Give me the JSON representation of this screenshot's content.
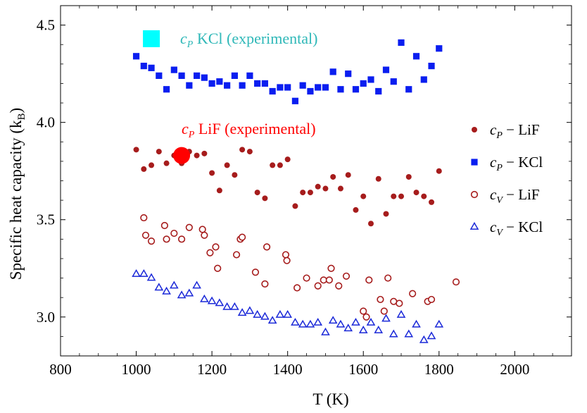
{
  "chart_data": {
    "type": "scatter",
    "xlabel": "T (K)",
    "ylabel_main": "Specific heat capacity (k",
    "ylabel_sub": "B",
    "ylabel_close": ")",
    "xlim": [
      800,
      2150
    ],
    "ylim": [
      2.8,
      4.6
    ],
    "xticks": [
      800,
      1000,
      1200,
      1400,
      1600,
      1800,
      2000
    ],
    "xtick_labels": [
      "800",
      "1000",
      "1200",
      "1400",
      "1600",
      "1800",
      "2000"
    ],
    "yticks": [
      3.0,
      3.5,
      4.0,
      4.5
    ],
    "ytick_labels": [
      "3.0",
      "3.5",
      "4.0",
      "4.5"
    ],
    "grid": false,
    "legend_position": "right",
    "colors": {
      "lif_dark": "#a61c1c",
      "kcl_blue": "#0a1ef0",
      "tri_blue": "#1a28d8",
      "exp_kcl": "#2fb8b8",
      "exp_kcl_marker": "#00ffff",
      "exp_lif": "#ff0000"
    },
    "series": [
      {
        "name": "cP − LiF",
        "marker": "filled-circle",
        "color": "#a61c1c",
        "x": [
          1000,
          1020,
          1040,
          1060,
          1080,
          1100,
          1120,
          1140,
          1160,
          1180,
          1200,
          1220,
          1240,
          1260,
          1280,
          1300,
          1320,
          1340,
          1360,
          1380,
          1400,
          1420,
          1440,
          1460,
          1480,
          1500,
          1520,
          1540,
          1560,
          1580,
          1600,
          1620,
          1640,
          1660,
          1680,
          1700,
          1720,
          1740,
          1760,
          1780,
          1800
        ],
        "y": [
          3.86,
          3.76,
          3.78,
          3.85,
          3.79,
          3.83,
          3.79,
          3.85,
          3.83,
          3.84,
          3.74,
          3.65,
          3.78,
          3.73,
          3.86,
          3.85,
          3.64,
          3.61,
          3.78,
          3.78,
          3.81,
          3.57,
          3.64,
          3.64,
          3.67,
          3.66,
          3.72,
          3.66,
          3.73,
          3.55,
          3.62,
          3.48,
          3.71,
          3.53,
          3.62,
          3.62,
          3.72,
          3.64,
          3.62,
          3.59,
          3.75
        ]
      },
      {
        "name": "cP − KCl",
        "marker": "filled-square",
        "color": "#0a1ef0",
        "x": [
          1000,
          1020,
          1040,
          1060,
          1080,
          1100,
          1120,
          1140,
          1160,
          1180,
          1200,
          1220,
          1240,
          1260,
          1280,
          1300,
          1320,
          1340,
          1360,
          1380,
          1400,
          1420,
          1440,
          1460,
          1480,
          1500,
          1520,
          1540,
          1560,
          1580,
          1600,
          1620,
          1640,
          1660,
          1680,
          1700,
          1720,
          1740,
          1760,
          1780,
          1800
        ],
        "y": [
          4.34,
          4.29,
          4.28,
          4.24,
          4.17,
          4.27,
          4.24,
          4.19,
          4.24,
          4.23,
          4.2,
          4.21,
          4.19,
          4.24,
          4.19,
          4.24,
          4.2,
          4.2,
          4.16,
          4.18,
          4.18,
          4.11,
          4.19,
          4.16,
          4.18,
          4.18,
          4.26,
          4.17,
          4.25,
          4.17,
          4.2,
          4.22,
          4.16,
          4.27,
          4.21,
          4.41,
          4.17,
          4.34,
          4.22,
          4.29,
          4.38
        ]
      },
      {
        "name": "cV − LiF",
        "marker": "open-circle",
        "color": "#a61c1c",
        "x": [
          1020,
          1025,
          1040,
          1075,
          1080,
          1100,
          1120,
          1140,
          1175,
          1180,
          1195,
          1210,
          1215,
          1265,
          1275,
          1280,
          1315,
          1340,
          1345,
          1395,
          1398,
          1425,
          1450,
          1480,
          1495,
          1510,
          1515,
          1535,
          1555,
          1600,
          1608,
          1615,
          1645,
          1655,
          1665,
          1680,
          1695,
          1730,
          1770,
          1780,
          1845
        ],
        "y": [
          3.51,
          3.42,
          3.39,
          3.47,
          3.4,
          3.43,
          3.4,
          3.46,
          3.45,
          3.42,
          3.33,
          3.36,
          3.25,
          3.32,
          3.4,
          3.41,
          3.23,
          3.17,
          3.36,
          3.32,
          3.29,
          3.15,
          3.2,
          3.16,
          3.19,
          3.19,
          3.25,
          3.16,
          3.21,
          3.03,
          3.0,
          3.19,
          3.09,
          3.03,
          3.2,
          3.08,
          3.07,
          3.12,
          3.08,
          3.09,
          3.18
        ]
      },
      {
        "name": "cV − KCl",
        "marker": "open-triangle",
        "color": "#1a28d8",
        "x": [
          1000,
          1020,
          1040,
          1060,
          1080,
          1100,
          1120,
          1140,
          1160,
          1180,
          1200,
          1220,
          1240,
          1260,
          1280,
          1300,
          1320,
          1340,
          1360,
          1380,
          1400,
          1420,
          1440,
          1460,
          1480,
          1500,
          1520,
          1540,
          1560,
          1580,
          1600,
          1620,
          1640,
          1660,
          1680,
          1700,
          1720,
          1740,
          1760,
          1780,
          1800
        ],
        "y": [
          3.22,
          3.22,
          3.2,
          3.15,
          3.13,
          3.16,
          3.11,
          3.12,
          3.16,
          3.09,
          3.08,
          3.07,
          3.05,
          3.05,
          3.02,
          3.03,
          3.01,
          3.0,
          2.98,
          3.01,
          3.01,
          2.97,
          2.96,
          2.96,
          2.97,
          2.92,
          2.98,
          2.96,
          2.94,
          2.97,
          2.93,
          2.97,
          2.93,
          2.99,
          2.91,
          3.01,
          2.91,
          2.96,
          2.88,
          2.9,
          2.96
        ]
      }
    ],
    "experimental": [
      {
        "id": "kcl",
        "x": 1040,
        "y": 4.43,
        "marker": "cyan-square",
        "label_symbol": "c",
        "label_sub": "P",
        "label_rest": " KCl (experimental)"
      },
      {
        "id": "lif",
        "x": 1120,
        "y": 3.83,
        "marker": "red-disc",
        "label_symbol": "c",
        "label_sub": "P",
        "label_rest": " LiF (experimental)"
      }
    ],
    "legend": [
      {
        "symbol": "c",
        "sub": "P",
        "rest": " − LiF",
        "marker": "filled-circle"
      },
      {
        "symbol": "c",
        "sub": "P",
        "rest": " − KCl",
        "marker": "filled-square"
      },
      {
        "symbol": "c",
        "sub": "V",
        "rest": " − LiF",
        "marker": "open-circle"
      },
      {
        "symbol": "c",
        "sub": "V",
        "rest": " − KCl",
        "marker": "open-triangle"
      }
    ]
  }
}
